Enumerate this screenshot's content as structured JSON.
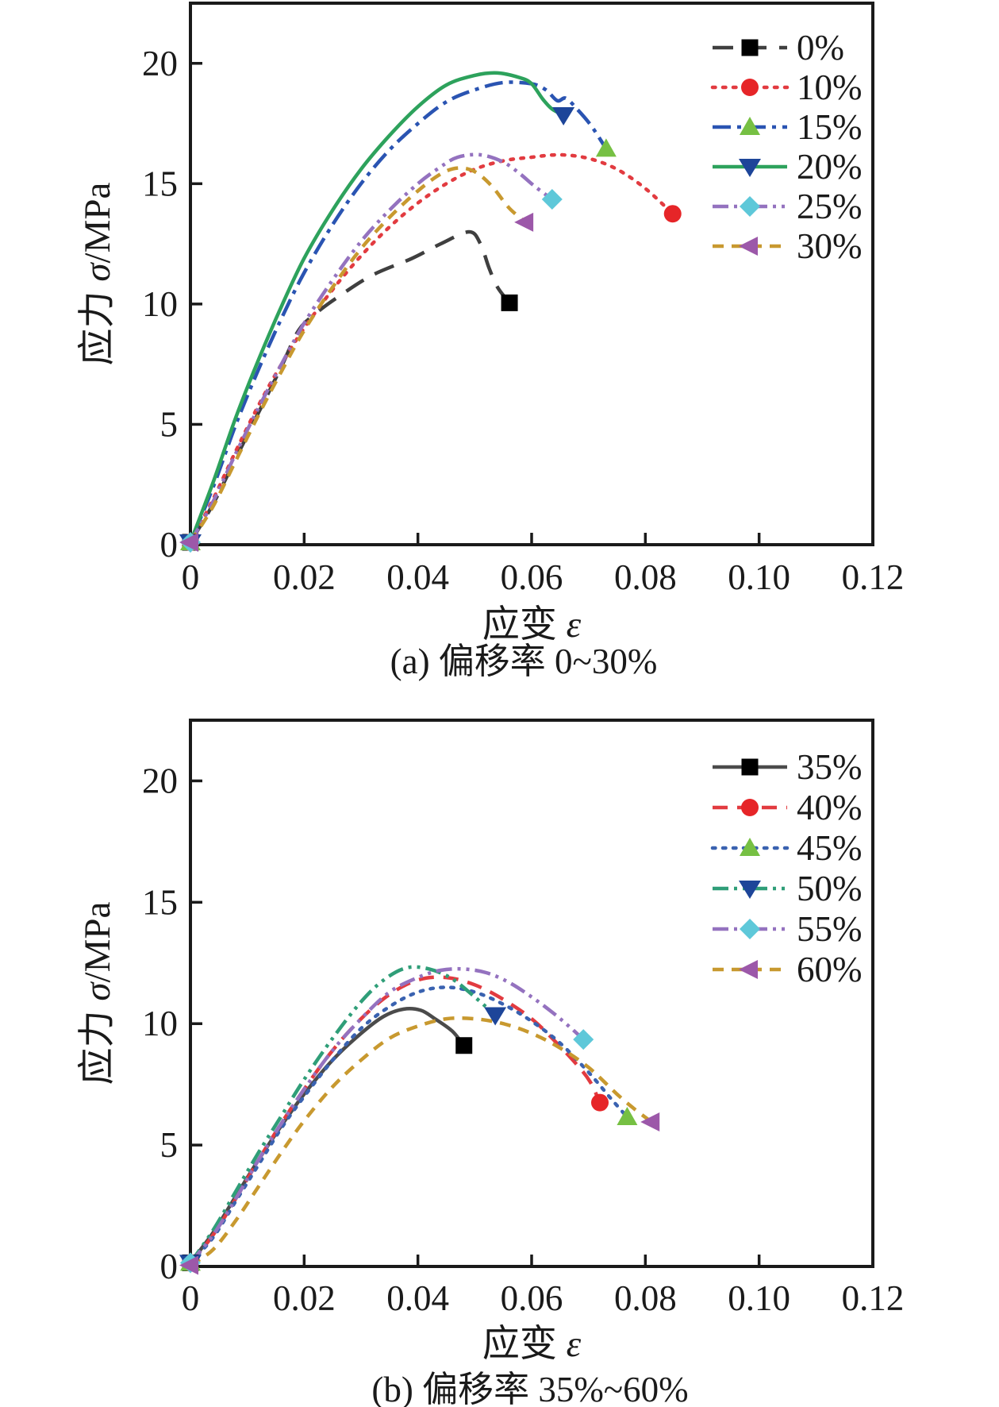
{
  "page": {
    "background": "#ffffff",
    "frame_color": "#1a1a1a"
  },
  "chart_data": [
    {
      "type": "line",
      "panel": "a",
      "caption": "(a) 偏移率 0~30%",
      "xlabel_cn": "应变 ",
      "xlabel_sym": "ε",
      "ylabel_cn": "应力 ",
      "ylabel_sym": "σ",
      "ylabel_unit": "/MPa",
      "xlim": [
        0,
        0.12
      ],
      "ylim": [
        0,
        22.5
      ],
      "grid": false,
      "legend_position": "top-right",
      "x_ticks": {
        "values": [
          0,
          0.02,
          0.04,
          0.06,
          0.08,
          0.1,
          0.12
        ],
        "labels": [
          "0",
          "0.02",
          "0.04",
          "0.06",
          "0.08",
          "0.10",
          "0.12"
        ]
      },
      "y_ticks": {
        "values": [
          0,
          5,
          10,
          15,
          20
        ],
        "labels": [
          "0",
          "5",
          "10",
          "15",
          "20"
        ]
      },
      "series": [
        {
          "name": "0%",
          "line_color": "#3f3f3f",
          "dash": "dash-long",
          "marker": "square",
          "marker_color": "#000000",
          "peak_stress": 13.0,
          "end_point": [
            0.0561,
            10.05
          ],
          "points": [
            [
              0,
              0.1
            ],
            [
              0.004,
              1.7
            ],
            [
              0.008,
              3.6
            ],
            [
              0.012,
              5.5
            ],
            [
              0.016,
              7.4
            ],
            [
              0.019,
              8.9
            ],
            [
              0.022,
              9.6
            ],
            [
              0.026,
              10.3
            ],
            [
              0.032,
              11.2
            ],
            [
              0.039,
              11.9
            ],
            [
              0.044,
              12.5
            ],
            [
              0.049,
              13.0
            ],
            [
              0.051,
              12.5
            ],
            [
              0.0525,
              11.5
            ],
            [
              0.054,
              10.7
            ],
            [
              0.0561,
              10.05
            ]
          ]
        },
        {
          "name": "10%",
          "line_color": "#e23b40",
          "dash": "dot",
          "marker": "circle",
          "marker_color": "#e62528",
          "peak_stress": 16.2,
          "end_point": [
            0.0848,
            13.75
          ],
          "points": [
            [
              0,
              0.1
            ],
            [
              0.004,
              1.9
            ],
            [
              0.008,
              3.9
            ],
            [
              0.012,
              5.8
            ],
            [
              0.016,
              7.5
            ],
            [
              0.02,
              9.0
            ],
            [
              0.025,
              10.6
            ],
            [
              0.03,
              12.0
            ],
            [
              0.035,
              13.2
            ],
            [
              0.04,
              14.2
            ],
            [
              0.045,
              15.0
            ],
            [
              0.05,
              15.6
            ],
            [
              0.055,
              15.95
            ],
            [
              0.06,
              16.1
            ],
            [
              0.065,
              16.2
            ],
            [
              0.07,
              16.05
            ],
            [
              0.075,
              15.6
            ],
            [
              0.08,
              14.8
            ],
            [
              0.0848,
              13.75
            ]
          ]
        },
        {
          "name": "15%",
          "line_color": "#2a54b2",
          "dash": "dash-dot",
          "marker": "triangle-up",
          "marker_color": "#76c043",
          "peak_stress": 19.2,
          "end_point": [
            0.0731,
            16.45
          ],
          "points": [
            [
              0,
              0.1
            ],
            [
              0.004,
              2.4
            ],
            [
              0.008,
              5.0
            ],
            [
              0.012,
              7.3
            ],
            [
              0.016,
              9.4
            ],
            [
              0.02,
              11.3
            ],
            [
              0.025,
              13.3
            ],
            [
              0.03,
              15.0
            ],
            [
              0.035,
              16.4
            ],
            [
              0.04,
              17.5
            ],
            [
              0.045,
              18.4
            ],
            [
              0.05,
              18.9
            ],
            [
              0.055,
              19.2
            ],
            [
              0.06,
              19.15
            ],
            [
              0.0625,
              18.9
            ],
            [
              0.0645,
              18.45
            ],
            [
              0.066,
              18.55
            ],
            [
              0.068,
              18.1
            ],
            [
              0.0705,
              17.4
            ],
            [
              0.0731,
              16.45
            ]
          ]
        },
        {
          "name": "20%",
          "line_color": "#2da25c",
          "dash": "solid",
          "marker": "triangle-down",
          "marker_color": "#1d4599",
          "peak_stress": 19.6,
          "end_point": [
            0.0656,
            17.85
          ],
          "points": [
            [
              0,
              0.1
            ],
            [
              0.004,
              2.6
            ],
            [
              0.008,
              5.3
            ],
            [
              0.012,
              7.7
            ],
            [
              0.016,
              9.9
            ],
            [
              0.02,
              11.9
            ],
            [
              0.025,
              13.9
            ],
            [
              0.03,
              15.6
            ],
            [
              0.035,
              17.0
            ],
            [
              0.04,
              18.2
            ],
            [
              0.045,
              19.1
            ],
            [
              0.05,
              19.5
            ],
            [
              0.054,
              19.6
            ],
            [
              0.058,
              19.4
            ],
            [
              0.06,
              19.15
            ],
            [
              0.062,
              18.5
            ],
            [
              0.0636,
              18.1
            ],
            [
              0.0656,
              17.85
            ]
          ]
        },
        {
          "name": "25%",
          "line_color": "#9472bf",
          "dash": "dash-dot-dot",
          "marker": "diamond",
          "marker_color": "#5ec8d9",
          "peak_stress": 16.2,
          "end_point": [
            0.0636,
            14.35
          ],
          "points": [
            [
              0,
              0.1
            ],
            [
              0.004,
              1.8
            ],
            [
              0.008,
              3.8
            ],
            [
              0.012,
              5.7
            ],
            [
              0.016,
              7.5
            ],
            [
              0.02,
              9.2
            ],
            [
              0.025,
              11.0
            ],
            [
              0.03,
              12.6
            ],
            [
              0.035,
              13.9
            ],
            [
              0.04,
              15.0
            ],
            [
              0.044,
              15.7
            ],
            [
              0.047,
              16.1
            ],
            [
              0.051,
              16.2
            ],
            [
              0.055,
              15.9
            ],
            [
              0.058,
              15.4
            ],
            [
              0.0605,
              14.9
            ],
            [
              0.0636,
              14.35
            ]
          ]
        },
        {
          "name": "30%",
          "line_color": "#c8992f",
          "dash": "dash",
          "marker": "triangle-left",
          "marker_color": "#9c58a9",
          "peak_stress": 15.7,
          "end_point": [
            0.0589,
            13.4
          ],
          "points": [
            [
              0,
              0.1
            ],
            [
              0.004,
              1.6
            ],
            [
              0.008,
              3.5
            ],
            [
              0.012,
              5.4
            ],
            [
              0.016,
              7.2
            ],
            [
              0.02,
              8.9
            ],
            [
              0.025,
              10.7
            ],
            [
              0.03,
              12.3
            ],
            [
              0.035,
              13.6
            ],
            [
              0.04,
              14.7
            ],
            [
              0.044,
              15.4
            ],
            [
              0.047,
              15.65
            ],
            [
              0.05,
              15.5
            ],
            [
              0.053,
              14.9
            ],
            [
              0.056,
              14.0
            ],
            [
              0.0589,
              13.4
            ]
          ]
        }
      ]
    },
    {
      "type": "line",
      "panel": "b",
      "caption": "(b) 偏移率 35%~60%",
      "xlabel_cn": "应变 ",
      "xlabel_sym": "ε",
      "ylabel_cn": "应力 ",
      "ylabel_sym": "σ",
      "ylabel_unit": "/MPa",
      "xlim": [
        0,
        0.12
      ],
      "ylim": [
        0,
        22.5
      ],
      "grid": false,
      "legend_position": "top-right",
      "x_ticks": {
        "values": [
          0,
          0.02,
          0.04,
          0.06,
          0.08,
          0.1,
          0.12
        ],
        "labels": [
          "0",
          "0.02",
          "0.04",
          "0.06",
          "0.08",
          "0.10",
          "0.12"
        ]
      },
      "y_ticks": {
        "values": [
          0,
          5,
          10,
          15,
          20
        ],
        "labels": [
          "0",
          "5",
          "10",
          "15",
          "20"
        ]
      },
      "series": [
        {
          "name": "35%",
          "line_color": "#4b4b4b",
          "dash": "solid",
          "marker": "square",
          "marker_color": "#000000",
          "peak_stress": 10.6,
          "end_point": [
            0.0481,
            9.1
          ],
          "points": [
            [
              0,
              0.15
            ],
            [
              0.004,
              1.4
            ],
            [
              0.008,
              2.9
            ],
            [
              0.012,
              4.4
            ],
            [
              0.016,
              5.8
            ],
            [
              0.02,
              7.1
            ],
            [
              0.025,
              8.5
            ],
            [
              0.03,
              9.6
            ],
            [
              0.034,
              10.3
            ],
            [
              0.0375,
              10.6
            ],
            [
              0.0405,
              10.55
            ],
            [
              0.043,
              10.2
            ],
            [
              0.046,
              9.7
            ],
            [
              0.0481,
              9.1
            ]
          ]
        },
        {
          "name": "40%",
          "line_color": "#e23b40",
          "dash": "dash-med",
          "marker": "circle",
          "marker_color": "#e62528",
          "peak_stress": 11.9,
          "end_point": [
            0.072,
            6.75
          ],
          "points": [
            [
              0,
              0.15
            ],
            [
              0.004,
              1.3
            ],
            [
              0.008,
              2.8
            ],
            [
              0.012,
              4.4
            ],
            [
              0.016,
              5.9
            ],
            [
              0.02,
              7.3
            ],
            [
              0.025,
              8.9
            ],
            [
              0.03,
              10.2
            ],
            [
              0.035,
              11.2
            ],
            [
              0.04,
              11.8
            ],
            [
              0.045,
              11.9
            ],
            [
              0.05,
              11.6
            ],
            [
              0.055,
              11.0
            ],
            [
              0.06,
              10.2
            ],
            [
              0.064,
              9.3
            ],
            [
              0.068,
              8.3
            ],
            [
              0.0703,
              7.6
            ],
            [
              0.072,
              6.75
            ]
          ]
        },
        {
          "name": "45%",
          "line_color": "#3a62b0",
          "dash": "dot",
          "marker": "triangle-up",
          "marker_color": "#76c043",
          "peak_stress": 11.5,
          "end_point": [
            0.0768,
            6.15
          ],
          "points": [
            [
              0,
              0.15
            ],
            [
              0.004,
              1.2
            ],
            [
              0.008,
              2.7
            ],
            [
              0.012,
              4.2
            ],
            [
              0.016,
              5.7
            ],
            [
              0.02,
              7.0
            ],
            [
              0.025,
              8.5
            ],
            [
              0.03,
              9.8
            ],
            [
              0.035,
              10.7
            ],
            [
              0.04,
              11.3
            ],
            [
              0.045,
              11.5
            ],
            [
              0.05,
              11.3
            ],
            [
              0.055,
              10.8
            ],
            [
              0.06,
              10.1
            ],
            [
              0.065,
              9.2
            ],
            [
              0.07,
              8.0
            ],
            [
              0.074,
              6.9
            ],
            [
              0.0768,
              6.15
            ]
          ]
        },
        {
          "name": "50%",
          "line_color": "#2f9e78",
          "dash": "dash-dot-dot",
          "marker": "triangle-down",
          "marker_color": "#1d4599",
          "peak_stress": 12.3,
          "end_point": [
            0.0536,
            10.35
          ],
          "points": [
            [
              0,
              0.15
            ],
            [
              0.004,
              1.5
            ],
            [
              0.008,
              3.1
            ],
            [
              0.012,
              4.7
            ],
            [
              0.016,
              6.2
            ],
            [
              0.02,
              7.7
            ],
            [
              0.025,
              9.4
            ],
            [
              0.03,
              10.9
            ],
            [
              0.034,
              11.8
            ],
            [
              0.038,
              12.3
            ],
            [
              0.042,
              12.25
            ],
            [
              0.046,
              11.85
            ],
            [
              0.05,
              11.1
            ],
            [
              0.0536,
              10.35
            ]
          ]
        },
        {
          "name": "55%",
          "line_color": "#9472bf",
          "dash": "dash-dot-dot",
          "marker": "diamond",
          "marker_color": "#5ec8d9",
          "peak_stress": 12.25,
          "end_point": [
            0.0691,
            9.35
          ],
          "points": [
            [
              0,
              0.15
            ],
            [
              0.004,
              1.3
            ],
            [
              0.008,
              2.8
            ],
            [
              0.012,
              4.4
            ],
            [
              0.016,
              5.9
            ],
            [
              0.02,
              7.3
            ],
            [
              0.025,
              8.9
            ],
            [
              0.03,
              10.2
            ],
            [
              0.035,
              11.3
            ],
            [
              0.04,
              11.9
            ],
            [
              0.044,
              12.2
            ],
            [
              0.048,
              12.25
            ],
            [
              0.052,
              12.1
            ],
            [
              0.056,
              11.7
            ],
            [
              0.06,
              11.1
            ],
            [
              0.064,
              10.4
            ],
            [
              0.067,
              9.8
            ],
            [
              0.0691,
              9.35
            ]
          ]
        },
        {
          "name": "60%",
          "line_color": "#c8992f",
          "dash": "dash",
          "marker": "triangle-left",
          "marker_color": "#9c58a9",
          "peak_stress": 10.2,
          "end_point": [
            0.0811,
            5.95
          ],
          "points": [
            [
              0,
              0.05
            ],
            [
              0.004,
              0.7
            ],
            [
              0.008,
              1.9
            ],
            [
              0.012,
              3.3
            ],
            [
              0.016,
              4.7
            ],
            [
              0.02,
              6.0
            ],
            [
              0.025,
              7.4
            ],
            [
              0.03,
              8.5
            ],
            [
              0.035,
              9.4
            ],
            [
              0.04,
              9.9
            ],
            [
              0.045,
              10.2
            ],
            [
              0.05,
              10.2
            ],
            [
              0.055,
              10.0
            ],
            [
              0.06,
              9.6
            ],
            [
              0.065,
              9.0
            ],
            [
              0.07,
              8.2
            ],
            [
              0.075,
              7.1
            ],
            [
              0.078,
              6.5
            ],
            [
              0.0811,
              5.95
            ]
          ]
        }
      ]
    }
  ]
}
